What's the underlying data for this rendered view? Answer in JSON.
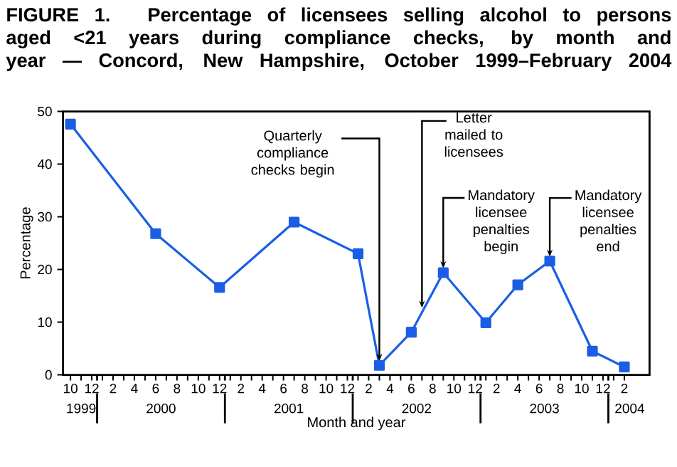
{
  "chart_data": {
    "type": "line",
    "title": "FIGURE 1. Percentage of licensees selling alcohol to persons aged <21 years during compliance checks, by month and year — Concord, New Hampshire, October 1999–February 2004",
    "xlabel": "Month and year",
    "ylabel": "Percentage",
    "x": [
      "1999-10",
      "2000-06",
      "2000-12",
      "2001-07",
      "2002-01",
      "2002-03",
      "2002-06",
      "2002-09",
      "2003-01",
      "2003-04",
      "2003-07",
      "2003-11",
      "2004-02"
    ],
    "series": [
      {
        "color": "#1a5ee6",
        "values": [
          47.6,
          26.8,
          16.6,
          29.0,
          23.0,
          1.8,
          8.1,
          19.4,
          9.9,
          17.1,
          21.6,
          4.5,
          1.5
        ]
      }
    ],
    "marker": "square",
    "line_style": "solid",
    "grid": false,
    "xlim": [
      "1999-09-10",
      "2004-04-12"
    ],
    "xticks": [
      {
        "value": "1999-10",
        "label": "10"
      },
      {
        "value": "1999-11",
        "label": null
      },
      {
        "value": "1999-12",
        "label": "12"
      },
      {
        "value": "2000-01",
        "label": null
      },
      {
        "value": "2000-02",
        "label": "2"
      },
      {
        "value": "2000-03",
        "label": null
      },
      {
        "value": "2000-04",
        "label": "4"
      },
      {
        "value": "2000-05",
        "label": null
      },
      {
        "value": "2000-06",
        "label": "6"
      },
      {
        "value": "2000-07",
        "label": null
      },
      {
        "value": "2000-08",
        "label": "8"
      },
      {
        "value": "2000-09",
        "label": null
      },
      {
        "value": "2000-10",
        "label": "10"
      },
      {
        "value": "2000-11",
        "label": null
      },
      {
        "value": "2000-12",
        "label": "12"
      },
      {
        "value": "2001-01",
        "label": null
      },
      {
        "value": "2001-02",
        "label": "2"
      },
      {
        "value": "2001-03",
        "label": null
      },
      {
        "value": "2001-04",
        "label": "4"
      },
      {
        "value": "2001-05",
        "label": null
      },
      {
        "value": "2001-06",
        "label": "6"
      },
      {
        "value": "2001-07",
        "label": null
      },
      {
        "value": "2001-08",
        "label": "8"
      },
      {
        "value": "2001-09",
        "label": null
      },
      {
        "value": "2001-10",
        "label": "10"
      },
      {
        "value": "2001-11",
        "label": null
      },
      {
        "value": "2001-12",
        "label": "12"
      },
      {
        "value": "2002-01",
        "label": null
      },
      {
        "value": "2002-02",
        "label": "2"
      },
      {
        "value": "2002-03",
        "label": null
      },
      {
        "value": "2002-04",
        "label": "4"
      },
      {
        "value": "2002-05",
        "label": null
      },
      {
        "value": "2002-06",
        "label": "6"
      },
      {
        "value": "2002-07",
        "label": null
      },
      {
        "value": "2002-08",
        "label": "8"
      },
      {
        "value": "2002-09",
        "label": null
      },
      {
        "value": "2002-10",
        "label": "10"
      },
      {
        "value": "2002-11",
        "label": null
      },
      {
        "value": "2002-12",
        "label": "12"
      },
      {
        "value": "2003-01",
        "label": null
      },
      {
        "value": "2003-02",
        "label": "2"
      },
      {
        "value": "2003-03",
        "label": null
      },
      {
        "value": "2003-04",
        "label": "4"
      },
      {
        "value": "2003-05",
        "label": null
      },
      {
        "value": "2003-06",
        "label": "6"
      },
      {
        "value": "2003-07",
        "label": null
      },
      {
        "value": "2003-08",
        "label": "8"
      },
      {
        "value": "2003-09",
        "label": null
      },
      {
        "value": "2003-10",
        "label": "10"
      },
      {
        "value": "2003-11",
        "label": null
      },
      {
        "value": "2003-12",
        "label": "12"
      },
      {
        "value": "2004-01",
        "label": null
      },
      {
        "value": "2004-02",
        "label": "2"
      }
    ],
    "ylim": [
      0,
      50
    ],
    "yticks": [
      0,
      10,
      20,
      30,
      40,
      50
    ],
    "annotations": [
      {
        "text": "Quarterly compliance checks begin",
        "x": "2002-03",
        "y": 1.8
      },
      {
        "text": "Letter mailed to licensees",
        "x": "2002-07",
        "y": 11.9
      },
      {
        "text": "Mandatory licensee penalties begin",
        "x": "2002-09",
        "y": 19.4
      },
      {
        "text": "Mandatory licensee penalties end",
        "x": "2003-07",
        "y": 21.6
      },
      "1999",
      "2000",
      "2001",
      "2002",
      "2003",
      "2004"
    ]
  }
}
